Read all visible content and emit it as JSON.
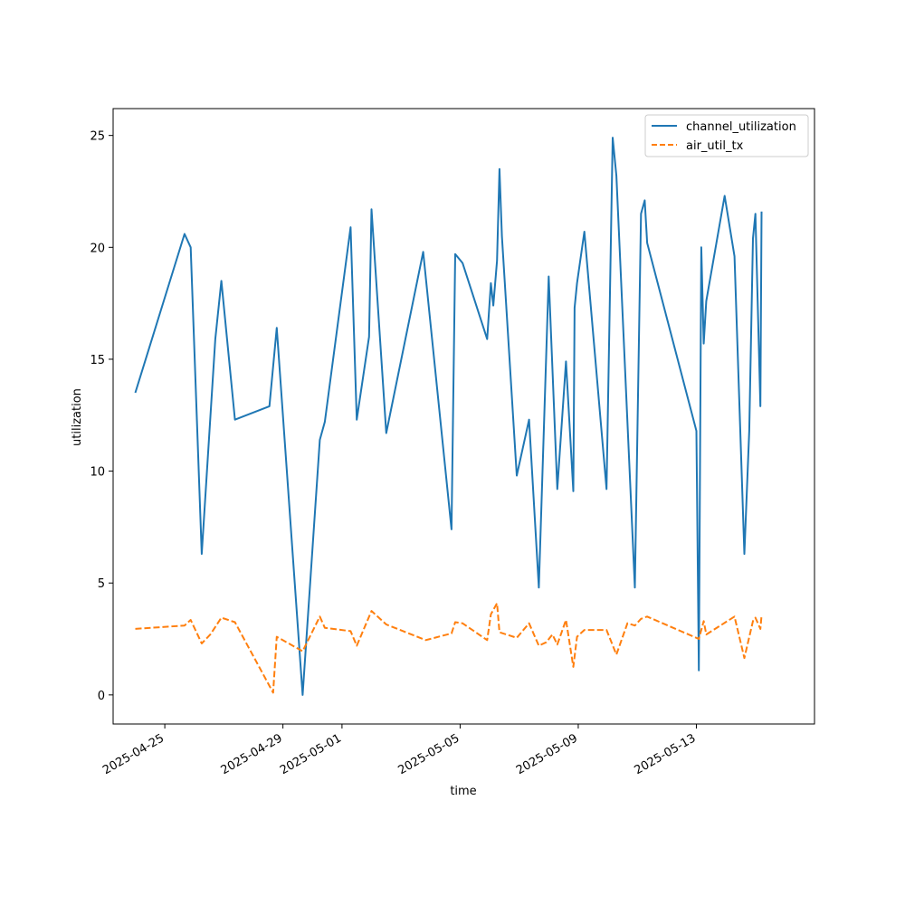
{
  "chart_data": {
    "type": "line",
    "xlabel": "time",
    "ylabel": "utilization",
    "xlim": [
      "2025-04-23T06:00",
      "2025-05-17T00:00"
    ],
    "ylim": [
      -1.3,
      26.2
    ],
    "x_ticks": [
      "2025-04-25",
      "2025-04-29",
      "2025-05-01",
      "2025-05-05",
      "2025-05-09",
      "2025-05-13"
    ],
    "y_ticks": [
      0,
      5,
      10,
      15,
      20,
      25
    ],
    "grid": false,
    "legend_position": "top-right",
    "series": [
      {
        "name": "channel_utilization",
        "color": "#1f77b4",
        "style": "solid",
        "points": [
          [
            "2025-04-24T00:00",
            13.5
          ],
          [
            "2025-04-25T16:00",
            20.6
          ],
          [
            "2025-04-25T21:00",
            20.0
          ],
          [
            "2025-04-26T06:00",
            6.3
          ],
          [
            "2025-04-26T17:00",
            15.9
          ],
          [
            "2025-04-26T22:00",
            18.5
          ],
          [
            "2025-04-27T09:00",
            12.3
          ],
          [
            "2025-04-28T13:00",
            12.9
          ],
          [
            "2025-04-28T19:00",
            16.4
          ],
          [
            "2025-04-29T16:00",
            0.0
          ],
          [
            "2025-04-30T06:00",
            11.4
          ],
          [
            "2025-04-30T10:00",
            12.2
          ],
          [
            "2025-05-01T07:00",
            20.9
          ],
          [
            "2025-05-01T12:00",
            12.3
          ],
          [
            "2025-05-01T22:00",
            16.0
          ],
          [
            "2025-05-02T00:00",
            21.7
          ],
          [
            "2025-05-02T12:00",
            11.7
          ],
          [
            "2025-05-03T18:00",
            19.8
          ],
          [
            "2025-05-04T17:00",
            7.4
          ],
          [
            "2025-05-04T20:00",
            19.7
          ],
          [
            "2025-05-05T02:00",
            19.3
          ],
          [
            "2025-05-05T22:00",
            15.9
          ],
          [
            "2025-05-06T01:00",
            18.4
          ],
          [
            "2025-05-06T03:00",
            17.4
          ],
          [
            "2025-05-06T06:00",
            19.4
          ],
          [
            "2025-05-06T08:00",
            23.5
          ],
          [
            "2025-05-06T10:00",
            20.5
          ],
          [
            "2025-05-06T22:00",
            9.8
          ],
          [
            "2025-05-07T08:00",
            12.3
          ],
          [
            "2025-05-07T16:00",
            4.8
          ],
          [
            "2025-05-08T00:00",
            18.7
          ],
          [
            "2025-05-08T07:00",
            9.2
          ],
          [
            "2025-05-08T14:00",
            14.9
          ],
          [
            "2025-05-08T20:00",
            9.1
          ],
          [
            "2025-05-08T21:00",
            17.3
          ],
          [
            "2025-05-08T23:00",
            18.4
          ],
          [
            "2025-05-09T05:00",
            20.7
          ],
          [
            "2025-05-09T23:00",
            9.2
          ],
          [
            "2025-05-10T04:00",
            24.9
          ],
          [
            "2025-05-10T07:00",
            23.2
          ],
          [
            "2025-05-10T22:00",
            4.8
          ],
          [
            "2025-05-11T03:00",
            21.5
          ],
          [
            "2025-05-11T06:00",
            22.1
          ],
          [
            "2025-05-11T08:00",
            20.2
          ],
          [
            "2025-05-13T00:00",
            11.8
          ],
          [
            "2025-05-13T02:00",
            1.1
          ],
          [
            "2025-05-13T04:00",
            20.0
          ],
          [
            "2025-05-13T06:00",
            15.7
          ],
          [
            "2025-05-13T08:00",
            17.6
          ],
          [
            "2025-05-13T23:00",
            22.3
          ],
          [
            "2025-05-14T07:00",
            19.6
          ],
          [
            "2025-05-14T15:00",
            6.3
          ],
          [
            "2025-05-14T19:00",
            11.8
          ],
          [
            "2025-05-14T22:00",
            20.4
          ],
          [
            "2025-05-15T00:00",
            21.5
          ],
          [
            "2025-05-15T04:00",
            12.9
          ],
          [
            "2025-05-15T05:00",
            21.6
          ]
        ]
      },
      {
        "name": "air_util_tx",
        "color": "#ff7f0e",
        "style": "dashed",
        "points": [
          [
            "2025-04-24T00:00",
            2.95
          ],
          [
            "2025-04-25T16:00",
            3.1
          ],
          [
            "2025-04-25T21:00",
            3.35
          ],
          [
            "2025-04-26T06:00",
            2.3
          ],
          [
            "2025-04-26T13:00",
            2.7
          ],
          [
            "2025-04-26T22:00",
            3.45
          ],
          [
            "2025-04-27T09:00",
            3.25
          ],
          [
            "2025-04-28T16:00",
            0.1
          ],
          [
            "2025-04-28T19:00",
            2.6
          ],
          [
            "2025-04-29T16:00",
            1.95
          ],
          [
            "2025-04-30T06:00",
            3.5
          ],
          [
            "2025-04-30T10:00",
            3.0
          ],
          [
            "2025-05-01T07:00",
            2.85
          ],
          [
            "2025-05-01T12:00",
            2.2
          ],
          [
            "2025-05-02T00:00",
            3.75
          ],
          [
            "2025-05-02T12:00",
            3.15
          ],
          [
            "2025-05-03T20:00",
            2.45
          ],
          [
            "2025-05-04T17:00",
            2.75
          ],
          [
            "2025-05-04T20:00",
            3.25
          ],
          [
            "2025-05-05T02:00",
            3.2
          ],
          [
            "2025-05-05T22:00",
            2.45
          ],
          [
            "2025-05-06T01:00",
            3.6
          ],
          [
            "2025-05-06T06:00",
            4.1
          ],
          [
            "2025-05-06T08:00",
            2.8
          ],
          [
            "2025-05-06T22:00",
            2.55
          ],
          [
            "2025-05-07T08:00",
            3.2
          ],
          [
            "2025-05-07T16:00",
            2.2
          ],
          [
            "2025-05-07T22:00",
            2.35
          ],
          [
            "2025-05-08T03:00",
            2.7
          ],
          [
            "2025-05-08T07:00",
            2.25
          ],
          [
            "2025-05-08T14:00",
            3.35
          ],
          [
            "2025-05-08T20:00",
            1.25
          ],
          [
            "2025-05-08T23:00",
            2.6
          ],
          [
            "2025-05-09T05:00",
            2.9
          ],
          [
            "2025-05-09T23:00",
            2.9
          ],
          [
            "2025-05-10T07:00",
            1.8
          ],
          [
            "2025-05-10T16:00",
            3.2
          ],
          [
            "2025-05-10T22:00",
            3.1
          ],
          [
            "2025-05-11T03:00",
            3.4
          ],
          [
            "2025-05-11T08:00",
            3.5
          ],
          [
            "2025-05-13T02:00",
            2.5
          ],
          [
            "2025-05-13T06:00",
            3.3
          ],
          [
            "2025-05-13T08:00",
            2.7
          ],
          [
            "2025-05-14T07:00",
            3.5
          ],
          [
            "2025-05-14T15:00",
            1.65
          ],
          [
            "2025-05-14T22:00",
            3.3
          ],
          [
            "2025-05-15T00:00",
            3.45
          ],
          [
            "2025-05-15T04:00",
            2.95
          ],
          [
            "2025-05-15T05:00",
            3.55
          ]
        ]
      }
    ]
  }
}
